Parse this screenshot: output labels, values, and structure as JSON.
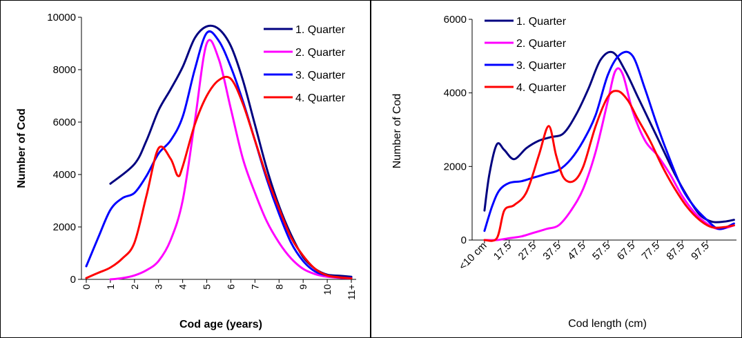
{
  "chart_data": [
    {
      "type": "line",
      "xlabel": "Cod age (years)",
      "ylabel": "Number of Cod",
      "ylim": [
        0,
        10000
      ],
      "yticks": [
        0,
        2000,
        4000,
        6000,
        8000,
        10000
      ],
      "ytick_labels": [
        "0",
        "2000",
        "4000",
        "6000",
        "8000",
        "10000"
      ],
      "xlim": [
        -0.2,
        11.2
      ],
      "categories": [
        "0",
        "1",
        "2",
        "3",
        "4",
        "5",
        "6",
        "7",
        "8",
        "9",
        "10",
        "11+"
      ],
      "grid": false,
      "legend_position": "top-right",
      "series": [
        {
          "name": "1. Quarter",
          "color": "#000080",
          "x": [
            1,
            2,
            2.5,
            3,
            3.5,
            4,
            4.5,
            5,
            5.5,
            6,
            6.5,
            7,
            7.5,
            8,
            8.5,
            9,
            9.5,
            10,
            10.5,
            11
          ],
          "values": [
            3650,
            4400,
            5300,
            6450,
            7250,
            8100,
            9200,
            9650,
            9550,
            8900,
            7600,
            5900,
            4200,
            2800,
            1700,
            850,
            400,
            180,
            140,
            100
          ]
        },
        {
          "name": "2. Quarter",
          "color": "#ff00ff",
          "x": [
            1,
            1.5,
            2,
            2.5,
            3,
            3.5,
            4,
            4.5,
            5,
            5.5,
            6,
            6.5,
            7,
            7.5,
            8,
            8.5,
            9,
            9.5,
            10,
            10.5,
            11
          ],
          "values": [
            0,
            50,
            150,
            350,
            700,
            1500,
            3000,
            6000,
            9000,
            8400,
            6500,
            4600,
            3300,
            2200,
            1400,
            800,
            400,
            200,
            100,
            60,
            40
          ]
        },
        {
          "name": "3. Quarter",
          "color": "#0000ff",
          "x": [
            0,
            0.5,
            1,
            1.5,
            2,
            2.5,
            3,
            3.5,
            4,
            4.5,
            5,
            5.5,
            6,
            6.5,
            7,
            7.5,
            8,
            8.5,
            9,
            9.5,
            10,
            10.5,
            11
          ],
          "values": [
            500,
            1600,
            2650,
            3100,
            3300,
            3950,
            4800,
            5300,
            6200,
            8000,
            9400,
            9100,
            8100,
            6800,
            5300,
            3800,
            2500,
            1400,
            700,
            300,
            150,
            80,
            60
          ]
        },
        {
          "name": "4. Quarter",
          "color": "#ff0000",
          "x": [
            0,
            0.5,
            1,
            1.5,
            2,
            2.5,
            3,
            3.5,
            3.8,
            4,
            4.5,
            5,
            5.5,
            6,
            6.5,
            7,
            7.5,
            8,
            8.5,
            9,
            9.5,
            10,
            10.5,
            11
          ],
          "values": [
            50,
            250,
            450,
            800,
            1400,
            3200,
            5000,
            4600,
            3950,
            4300,
            5900,
            7000,
            7600,
            7650,
            6700,
            5300,
            3900,
            2700,
            1600,
            900,
            400,
            150,
            80,
            40
          ]
        }
      ]
    },
    {
      "type": "line",
      "xlabel": "Cod length (cm)",
      "ylabel": "Number of Cod",
      "ylim": [
        0,
        6000
      ],
      "yticks": [
        0,
        2000,
        4000,
        6000
      ],
      "ytick_labels": [
        "0",
        "2000",
        "4000",
        "6000"
      ],
      "xlim": [
        0.5,
        11.2
      ],
      "categories": [
        "<10 cm",
        "17.5",
        "27.5",
        "37.5",
        "47.5",
        "57.5",
        "67.5",
        "77.5",
        "87.5",
        "97.5"
      ],
      "grid": false,
      "legend_position": "top-left",
      "series": [
        {
          "name": "1. Quarter",
          "color": "#000080",
          "x": [
            1,
            1.2,
            1.5,
            1.8,
            2.2,
            2.7,
            3.2,
            3.7,
            4.2,
            4.7,
            5.2,
            5.7,
            6.2,
            6.7,
            7.2,
            7.7,
            8.2,
            8.7,
            9.2,
            9.7,
            10.2,
            10.7,
            11.1
          ],
          "values": [
            800,
            1800,
            2600,
            2450,
            2200,
            2500,
            2700,
            2800,
            2900,
            3400,
            4100,
            4900,
            5100,
            4600,
            3900,
            3200,
            2500,
            1800,
            1200,
            700,
            500,
            500,
            550
          ]
        },
        {
          "name": "2. Quarter",
          "color": "#ff00ff",
          "x": [
            1,
            1.5,
            2,
            2.5,
            3,
            3.5,
            4,
            4.5,
            5,
            5.5,
            6,
            6.3,
            6.6,
            7,
            7.5,
            8,
            8.5,
            9,
            9.5,
            10,
            10.5,
            11.1
          ],
          "values": [
            0,
            0,
            50,
            100,
            200,
            300,
            400,
            800,
            1400,
            2400,
            3800,
            4600,
            4500,
            3500,
            2700,
            2300,
            1800,
            1200,
            750,
            450,
            300,
            400
          ]
        },
        {
          "name": "3. Quarter",
          "color": "#0000ff",
          "x": [
            1,
            1.3,
            1.6,
            2,
            2.5,
            3,
            3.5,
            4,
            4.5,
            5,
            5.5,
            6,
            6.5,
            7,
            7.5,
            8,
            8.5,
            9,
            9.5,
            10,
            10.5,
            11.1
          ],
          "values": [
            250,
            900,
            1350,
            1550,
            1600,
            1700,
            1800,
            1900,
            2200,
            2700,
            3400,
            4500,
            5050,
            5000,
            4100,
            3100,
            2200,
            1400,
            900,
            550,
            300,
            450
          ]
        },
        {
          "name": "4. Quarter",
          "color": "#ff0000",
          "x": [
            1,
            1.5,
            1.8,
            2.2,
            2.7,
            3.2,
            3.6,
            3.9,
            4.2,
            4.6,
            5,
            5.5,
            6,
            6.4,
            6.8,
            7.2,
            7.7,
            8.2,
            8.7,
            9.2,
            9.7,
            10.2,
            10.7,
            11.1
          ],
          "values": [
            0,
            50,
            800,
            950,
            1300,
            2300,
            3100,
            2300,
            1700,
            1600,
            2000,
            3100,
            3900,
            4050,
            3800,
            3300,
            2700,
            2000,
            1400,
            900,
            550,
            350,
            350,
            400
          ]
        }
      ]
    }
  ]
}
